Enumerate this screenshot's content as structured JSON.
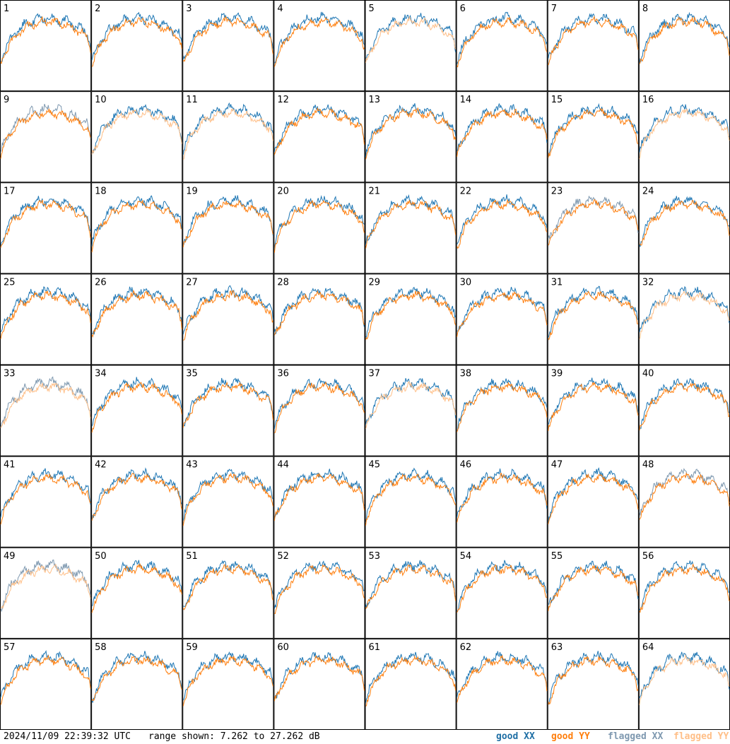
{
  "chart_data": {
    "type": "line",
    "panels": [
      "1",
      "2",
      "3",
      "4",
      "5",
      "6",
      "7",
      "8",
      "9",
      "10",
      "11",
      "12",
      "13",
      "14",
      "15",
      "16",
      "17",
      "18",
      "19",
      "20",
      "21",
      "22",
      "23",
      "24",
      "25",
      "26",
      "27",
      "28",
      "29",
      "30",
      "31",
      "32",
      "33",
      "34",
      "35",
      "36",
      "37",
      "38",
      "39",
      "40",
      "41",
      "42",
      "43",
      "44",
      "45",
      "46",
      "47",
      "48",
      "49",
      "50",
      "51",
      "52",
      "53",
      "54",
      "55",
      "56",
      "57",
      "58",
      "59",
      "60",
      "61",
      "62",
      "63",
      "64"
    ],
    "flagged_xx": [
      "9",
      "23",
      "33",
      "48",
      "49"
    ],
    "flagged_yy": [
      "5",
      "10",
      "11",
      "16",
      "32",
      "33",
      "37",
      "49",
      "64"
    ],
    "grid": {
      "rows": 8,
      "cols": 8
    },
    "ylim": [
      7.262,
      27.262
    ],
    "series": [
      {
        "name": "good XX",
        "color": "#1f77b4"
      },
      {
        "name": "good YY",
        "color": "#ff7f0e"
      },
      {
        "name": "flagged XX",
        "color": "#7f99b0"
      },
      {
        "name": "flagged YY",
        "color": "#ffbf88"
      }
    ]
  },
  "footer": {
    "timestamp": "2024/11/09 22:39:32 UTC",
    "range": "range shown: 7.262 to 27.262 dB",
    "legend": {
      "good_xx": "good XX",
      "good_yy": "good YY",
      "flagged_xx": "flagged XX",
      "flagged_yy": "flagged YY"
    }
  }
}
